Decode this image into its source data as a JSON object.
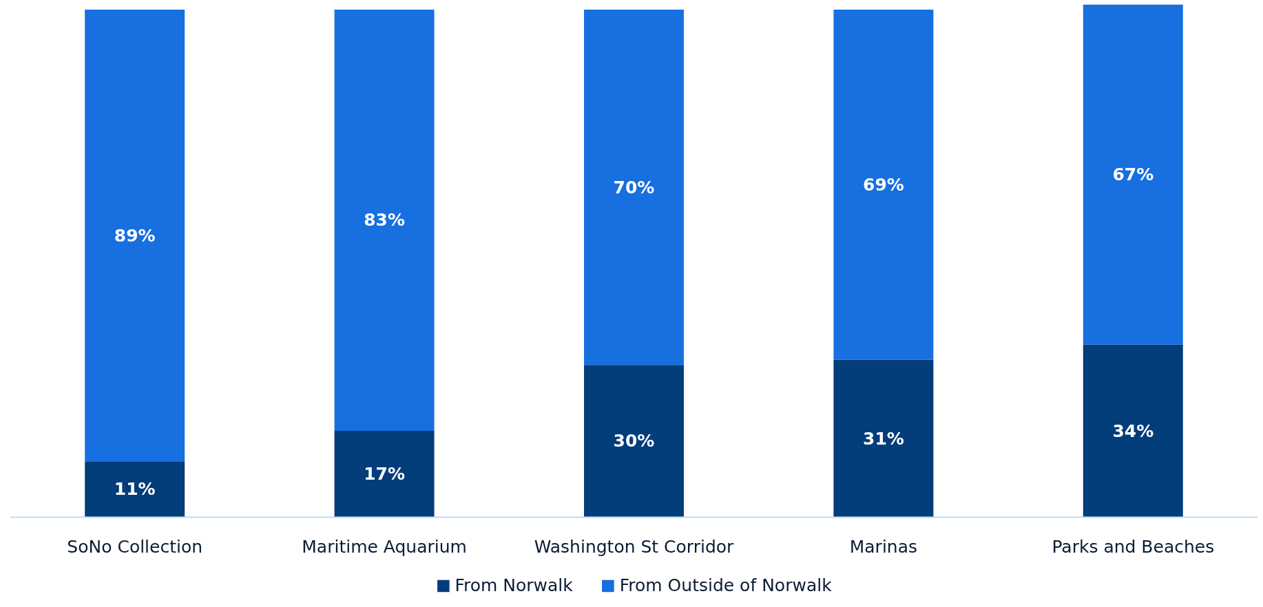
{
  "chart_data": {
    "type": "bar",
    "stacked": true,
    "legend": "bottom",
    "grid": false,
    "categories": [
      "SoNo Collection",
      "Maritime Aquarium",
      "Washington St Corridor",
      "Marinas",
      "Parks and Beaches"
    ],
    "series": [
      {
        "name": "From Norwalk",
        "color": "#033d7a",
        "values": [
          11,
          17,
          30,
          31,
          34
        ],
        "value_labels": [
          "11%",
          "17%",
          "30%",
          "31%",
          "34%"
        ]
      },
      {
        "name": "From Outside of Norwalk",
        "color": "#176fe0",
        "values": [
          89,
          83,
          70,
          69,
          67
        ],
        "value_labels": [
          "89%",
          "83%",
          "70%",
          "69%",
          "67%"
        ]
      }
    ]
  }
}
